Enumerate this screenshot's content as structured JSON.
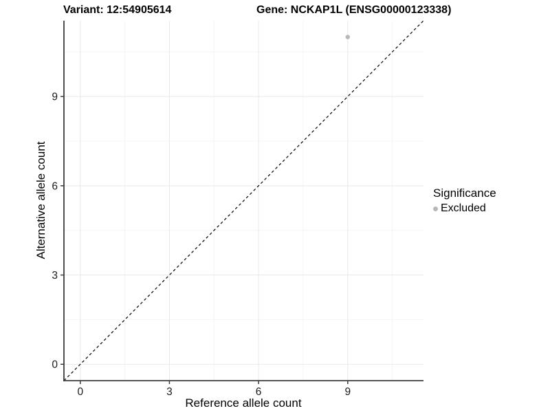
{
  "titles": {
    "variant": "Variant: 12:54905614",
    "gene": "Gene: NCKAP1L (ENSG00000123338)"
  },
  "legend": {
    "title": "Significance",
    "items": [
      {
        "label": "Excluded",
        "color": "#b8b8b8"
      }
    ]
  },
  "colors": {
    "background": "#ffffff",
    "grid_major": "#e8e8e8",
    "grid_minor": "#f4f4f4",
    "axis_line": "#3b3b3b",
    "tick_text": "#1a1a1a",
    "point": "#b8b8b8",
    "reference_line": "#000000"
  },
  "chart_data": {
    "type": "scatter",
    "title": "Variant: 12:54905614   Gene: NCKAP1L (ENSG00000123338)",
    "xlabel": "Reference allele count",
    "ylabel": "Alternative allele count",
    "xlim": [
      -0.55,
      11.55
    ],
    "ylim": [
      -0.55,
      11.55
    ],
    "xticks": [
      0,
      3,
      6,
      9
    ],
    "yticks": [
      0,
      3,
      6,
      9
    ],
    "minor_ticks": [
      1.5,
      4.5,
      7.5,
      10.5
    ],
    "grid": "major+minor",
    "legend_position": "right",
    "series": [
      {
        "name": "Excluded",
        "color": "#b8b8b8",
        "points": [
          {
            "x": 9,
            "y": 11
          }
        ]
      }
    ],
    "reference_line": {
      "type": "identity y=x",
      "style": "dashed",
      "color": "#000000"
    }
  }
}
